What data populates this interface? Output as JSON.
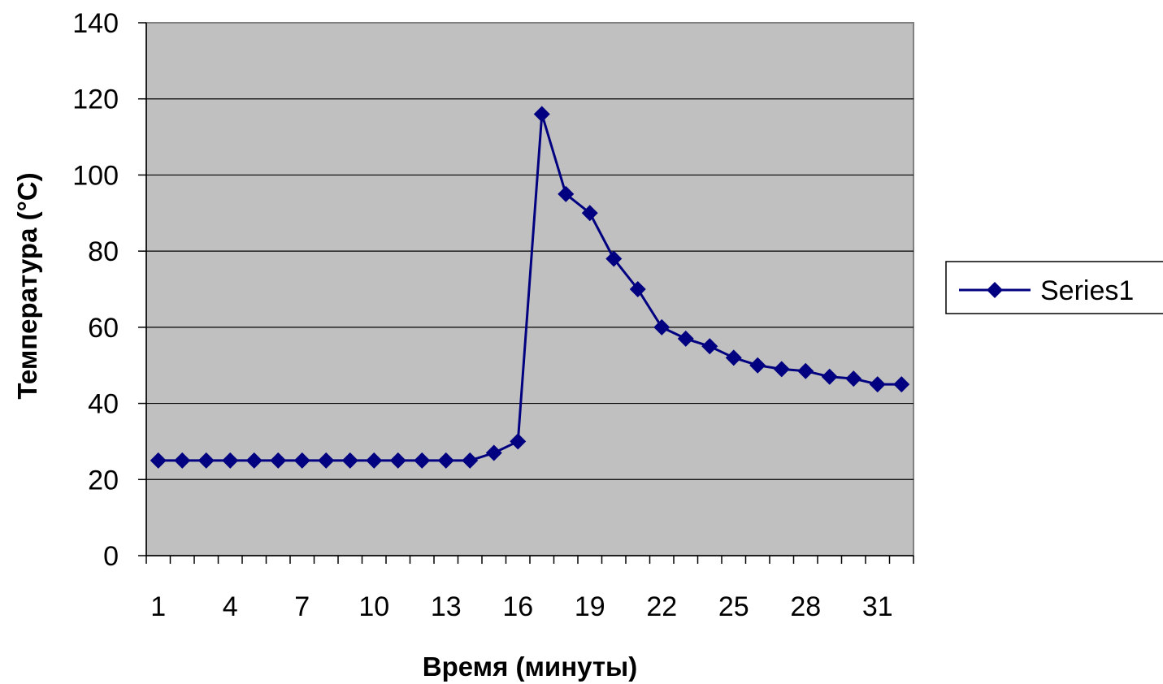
{
  "chart_data": {
    "type": "line",
    "xlabel": "Время (минуты)",
    "ylabel": "Температура (°C)",
    "ylim": [
      0,
      140
    ],
    "y_ticks": [
      0,
      20,
      40,
      60,
      80,
      100,
      120,
      140
    ],
    "x_tick_labels": [
      "1",
      "4",
      "7",
      "10",
      "13",
      "16",
      "19",
      "22",
      "25",
      "28",
      "31"
    ],
    "x": [
      1,
      2,
      3,
      4,
      5,
      6,
      7,
      8,
      9,
      10,
      11,
      12,
      13,
      14,
      15,
      16,
      17,
      18,
      19,
      20,
      21,
      22,
      23,
      24,
      25,
      26,
      27,
      28,
      29,
      30,
      31,
      32
    ],
    "series": [
      {
        "name": "Series1",
        "color": "#000080",
        "values": [
          25,
          25,
          25,
          25,
          25,
          25,
          25,
          25,
          25,
          25,
          25,
          25,
          25,
          25,
          27,
          30,
          116,
          95,
          90,
          78,
          70,
          60,
          57,
          55,
          52,
          50,
          49,
          48.5,
          47,
          46.5,
          45,
          45
        ]
      }
    ],
    "grid": true,
    "plot_background": "#c0c0c0",
    "legend_position": "right"
  }
}
